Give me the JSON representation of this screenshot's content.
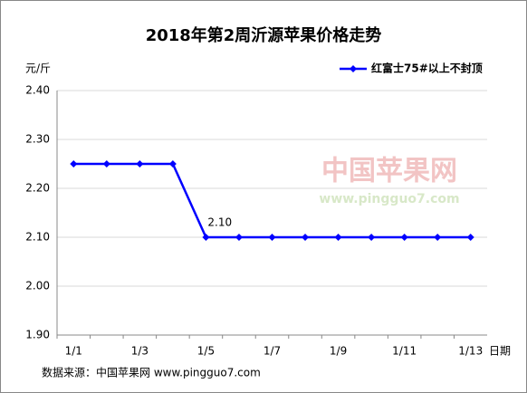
{
  "chart_data": {
    "type": "line",
    "title": "2018年第2周沂源苹果价格走势",
    "y_label": "元/斤",
    "x_label": "日期",
    "source": "数据来源：中国苹果网 www.pingguo7.com",
    "watermark": [
      "中国苹果网",
      "www.pingguo7.com"
    ],
    "categories": [
      "1/1",
      null,
      "1/3",
      null,
      "1/5",
      null,
      "1/7",
      null,
      "1/9",
      null,
      "1/11",
      null,
      "1/13"
    ],
    "series": [
      {
        "name": "红富士75#以上不封顶",
        "color": "#0000ff",
        "values": [
          2.25,
          2.25,
          2.25,
          2.25,
          2.1,
          2.1,
          2.1,
          2.1,
          2.1,
          2.1,
          2.1,
          2.1,
          2.1
        ],
        "value_labels": [
          null,
          null,
          null,
          null,
          "2.10",
          null,
          null,
          null,
          null,
          null,
          null,
          null,
          null
        ]
      }
    ],
    "ylim": [
      1.9,
      2.4
    ],
    "yticks": [
      {
        "value": 1.9,
        "label": "1.90"
      },
      {
        "value": 2.0,
        "label": "2.00"
      },
      {
        "value": 2.1,
        "label": "2.10"
      },
      {
        "value": 2.2,
        "label": "2.20"
      },
      {
        "value": 2.3,
        "label": "2.30"
      },
      {
        "value": 2.4,
        "label": "2.40"
      }
    ],
    "grid": true,
    "legend": "top-right"
  }
}
